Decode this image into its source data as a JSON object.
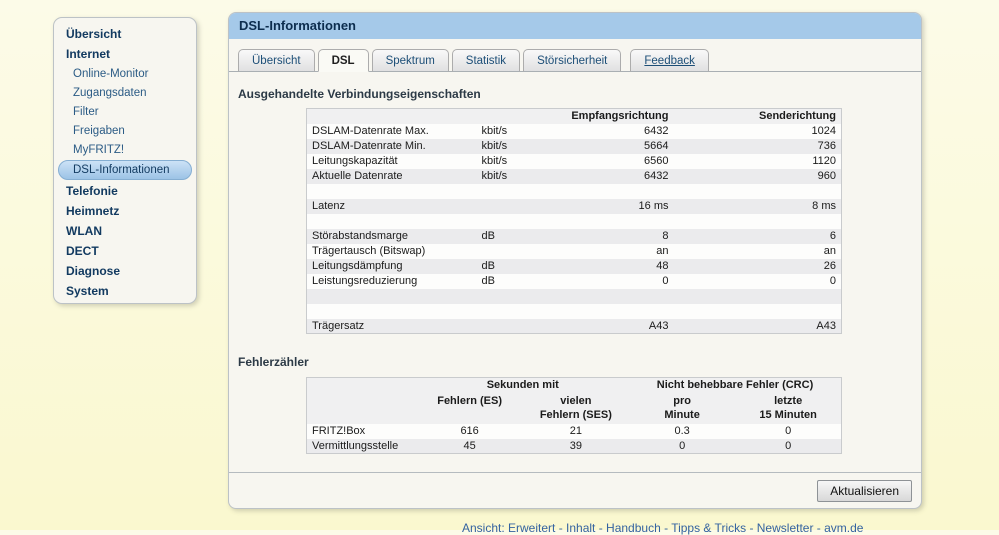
{
  "page": {
    "title": "DSL-Informationen",
    "footer": "Ansicht: Erweitert - Inhalt - Handbuch - Tipps & Tricks - Newsletter - avm.de"
  },
  "sidebar": {
    "items": [
      {
        "label": "Übersicht",
        "type": "main",
        "selected": false
      },
      {
        "label": "Internet",
        "type": "main",
        "selected": false
      },
      {
        "label": "Online-Monitor",
        "type": "sub",
        "selected": false
      },
      {
        "label": "Zugangsdaten",
        "type": "sub",
        "selected": false
      },
      {
        "label": "Filter",
        "type": "sub",
        "selected": false
      },
      {
        "label": "Freigaben",
        "type": "sub",
        "selected": false
      },
      {
        "label": "MyFRITZ!",
        "type": "sub",
        "selected": false
      },
      {
        "label": "DSL-Informationen",
        "type": "sub",
        "selected": true
      },
      {
        "label": "Telefonie",
        "type": "main",
        "selected": false
      },
      {
        "label": "Heimnetz",
        "type": "main",
        "selected": false
      },
      {
        "label": "WLAN",
        "type": "main",
        "selected": false
      },
      {
        "label": "DECT",
        "type": "main",
        "selected": false
      },
      {
        "label": "Diagnose",
        "type": "main",
        "selected": false
      },
      {
        "label": "System",
        "type": "main",
        "selected": false
      }
    ]
  },
  "tabs": [
    {
      "label": "Übersicht",
      "active": false,
      "link": false
    },
    {
      "label": "DSL",
      "active": true,
      "link": false
    },
    {
      "label": "Spektrum",
      "active": false,
      "link": false
    },
    {
      "label": "Statistik",
      "active": false,
      "link": false
    },
    {
      "label": "Störsicherheit",
      "active": false,
      "link": false
    },
    {
      "label": "Feedback",
      "active": false,
      "link": true
    }
  ],
  "connection_section": {
    "heading": "Ausgehandelte Verbindungseigenschaften",
    "table": {
      "col_headers": [
        "",
        "",
        "Empfangsrichtung",
        "Senderichtung"
      ],
      "rows": [
        {
          "label": "DSLAM-Datenrate Max.",
          "unit": "kbit/s",
          "rx": "6432",
          "tx": "1024"
        },
        {
          "label": "DSLAM-Datenrate Min.",
          "unit": "kbit/s",
          "rx": "5664",
          "tx": "736"
        },
        {
          "label": "Leitungskapazität",
          "unit": "kbit/s",
          "rx": "6560",
          "tx": "1120"
        },
        {
          "label": "Aktuelle Datenrate",
          "unit": "kbit/s",
          "rx": "6432",
          "tx": "960"
        },
        {
          "label": "",
          "unit": "",
          "rx": "",
          "tx": ""
        },
        {
          "label": "Latenz",
          "unit": "",
          "rx": "16 ms",
          "tx": "8 ms"
        },
        {
          "label": "",
          "unit": "",
          "rx": "",
          "tx": ""
        },
        {
          "label": "Störabstandsmarge",
          "unit": "dB",
          "rx": "8",
          "tx": "6"
        },
        {
          "label": "Trägertausch (Bitswap)",
          "unit": "",
          "rx": "an",
          "tx": "an"
        },
        {
          "label": "Leitungsdämpfung",
          "unit": "dB",
          "rx": "48",
          "tx": "26"
        },
        {
          "label": "Leistungsreduzierung",
          "unit": "dB",
          "rx": "0",
          "tx": "0"
        },
        {
          "label": "",
          "unit": "",
          "rx": "",
          "tx": ""
        },
        {
          "label": "",
          "unit": "",
          "rx": "",
          "tx": ""
        },
        {
          "label": "Trägersatz",
          "unit": "",
          "rx": "A43",
          "tx": "A43"
        }
      ]
    }
  },
  "error_section": {
    "heading": "Fehlerzähler",
    "table": {
      "group_headers": [
        "",
        "Sekunden mit",
        "Nicht behebbare Fehler (CRC)"
      ],
      "col_headers": [
        "",
        "Fehlern (ES)",
        "vielen\nFehlern (SES)",
        "pro\nMinute",
        "letzte\n15 Minuten"
      ],
      "rows": [
        {
          "label": "FRITZ!Box",
          "values": [
            "616",
            "21",
            "0.3",
            "0"
          ]
        },
        {
          "label": "Vermittlungsstelle",
          "values": [
            "45",
            "39",
            "0",
            "0"
          ]
        }
      ]
    }
  },
  "actions": {
    "refresh_label": "Aktualisieren"
  },
  "colors": {
    "headerBlue": "#A5C9E9",
    "headerText": "#0C2D4E",
    "panelBg": "#F7F6F0",
    "selectedItemTop": "#CCE2F6",
    "selectedItemBottom": "#9CC3E6",
    "sideMain": "#123A60",
    "sideSub": "#2B5B85",
    "tableHeadBg": "#F0F0F1",
    "rowGray": "#EBEBED",
    "pageBg": "#FBF9D9",
    "footerColor": "#3463A0"
  }
}
